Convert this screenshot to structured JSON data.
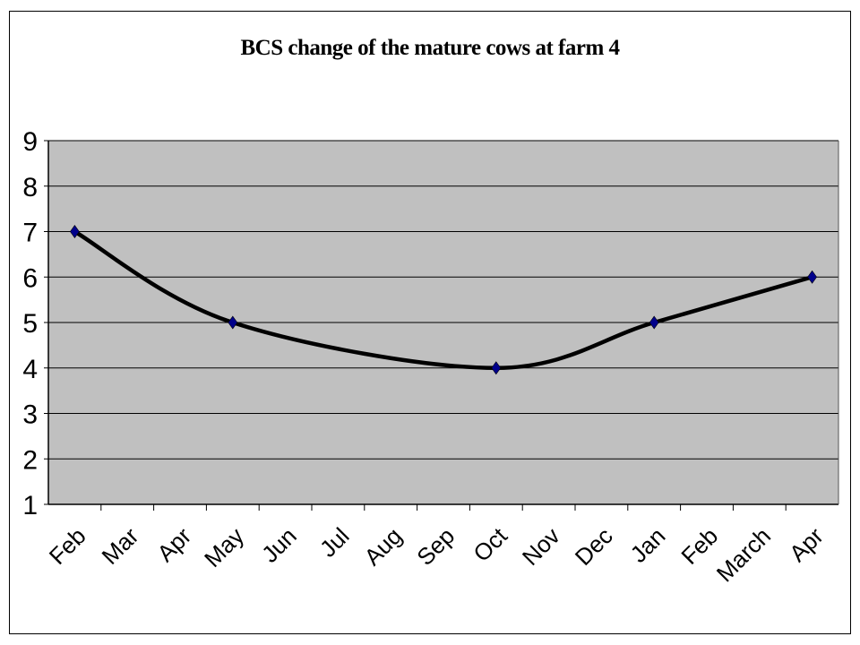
{
  "chart_data": {
    "type": "line",
    "title": "BCS change of the mature cows at farm 4",
    "xlabel": "",
    "ylabel": "",
    "categories": [
      "Feb",
      "Mar",
      "Apr",
      "May",
      "Jun",
      "Jul",
      "Aug",
      "Sep",
      "Oct",
      "Nov",
      "Dec",
      "Jan",
      "Feb",
      "March",
      "Apr"
    ],
    "ylim": [
      1,
      9
    ],
    "yticks": [
      "1",
      "2",
      "3",
      "4",
      "5",
      "6",
      "7",
      "8",
      "9"
    ],
    "grid": true,
    "legend": "none",
    "smooth": true,
    "series": [
      {
        "points": [
          {
            "x": "Feb",
            "y": 7
          },
          {
            "x": "May",
            "y": 5
          },
          {
            "x": "Oct",
            "y": 4
          },
          {
            "x": "Jan",
            "y": 5
          },
          {
            "x": "Apr",
            "y": 6
          }
        ]
      }
    ],
    "colors": {
      "plot_background": "#c0c0c0",
      "line": "#000000",
      "marker": "#00008b",
      "grid": "#000000"
    }
  }
}
